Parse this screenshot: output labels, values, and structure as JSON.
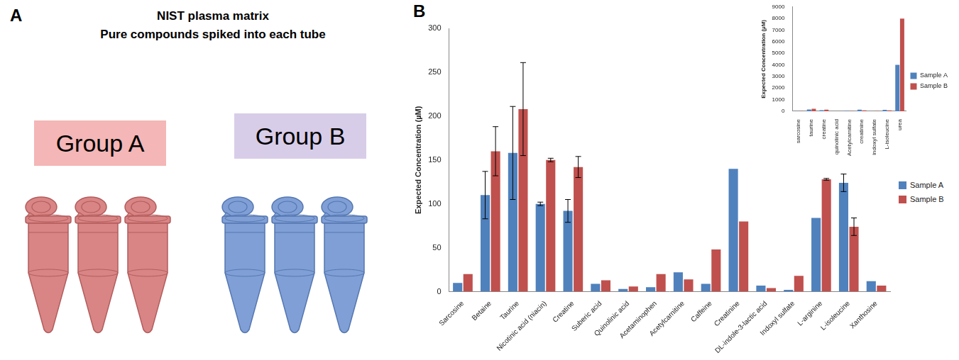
{
  "diagram": {
    "letter": "A",
    "title": [
      "NIST plasma matrix",
      "Pure compounds spiked into each tube"
    ],
    "groups": [
      {
        "label": "Group A",
        "tubes": 3
      },
      {
        "label": "Group B",
        "tubes": 3
      }
    ]
  },
  "chart_data": [
    {
      "type": "bar",
      "letter": "B",
      "y_label": "Expected Concentration (µM)",
      "categories": [
        "Sarcosine",
        "Betaine",
        "Taurine",
        "Nicotinic acid (niacin)",
        "Creatine",
        "Suberic acid",
        "Quinolinic acid",
        "Acetaminophen",
        "Acetylcarnitine",
        "Caffeine",
        "Creatinine",
        "DL-indole-3-lactic acid",
        "Indoxyl sulfate",
        "L-arginine",
        "L-isoleucine",
        "Xanthosine"
      ],
      "series": [
        {
          "name": "Sample A",
          "color": "#4f81bd",
          "values": [
            10,
            110,
            158,
            100,
            92,
            9,
            3,
            5,
            22,
            9,
            140,
            7,
            2,
            84,
            124,
            12
          ],
          "errors": [
            null,
            27,
            53,
            2,
            13,
            null,
            null,
            null,
            null,
            null,
            null,
            null,
            null,
            null,
            10,
            null
          ]
        },
        {
          "name": "Sample B",
          "color": "#c0504d",
          "values": [
            20,
            160,
            208,
            150,
            142,
            13,
            6,
            20,
            14,
            48,
            80,
            4,
            18,
            128,
            74,
            7
          ],
          "errors": [
            null,
            28,
            53,
            2,
            12,
            null,
            null,
            null,
            null,
            null,
            null,
            null,
            null,
            1,
            10,
            null
          ]
        }
      ],
      "ylim": [
        0,
        300
      ],
      "yticks": [
        0,
        50,
        100,
        150,
        200,
        250,
        300
      ],
      "grid": false,
      "legend": "right"
    },
    {
      "type": "bar",
      "y_label": "Expected Concentration (µM)",
      "categories": [
        "sarcosine",
        "taurine",
        "creatine",
        "quinolinic acid",
        "Acetylcarnitine",
        "creatinine",
        "indoxyl sulfate",
        "L-isoleucine",
        "urea"
      ],
      "series": [
        {
          "name": "Sample A",
          "color": "#4f81bd",
          "values": [
            10,
            158,
            92,
            3,
            22,
            140,
            2,
            124,
            4000
          ]
        },
        {
          "name": "Sample B",
          "color": "#c0504d",
          "values": [
            20,
            208,
            142,
            6,
            14,
            80,
            18,
            74,
            8000
          ]
        }
      ],
      "ylim": [
        0,
        9000
      ],
      "yticks": [
        0,
        1000,
        2000,
        3000,
        4000,
        5000,
        6000,
        7000,
        8000,
        9000
      ],
      "grid": false,
      "legend": "right"
    }
  ]
}
